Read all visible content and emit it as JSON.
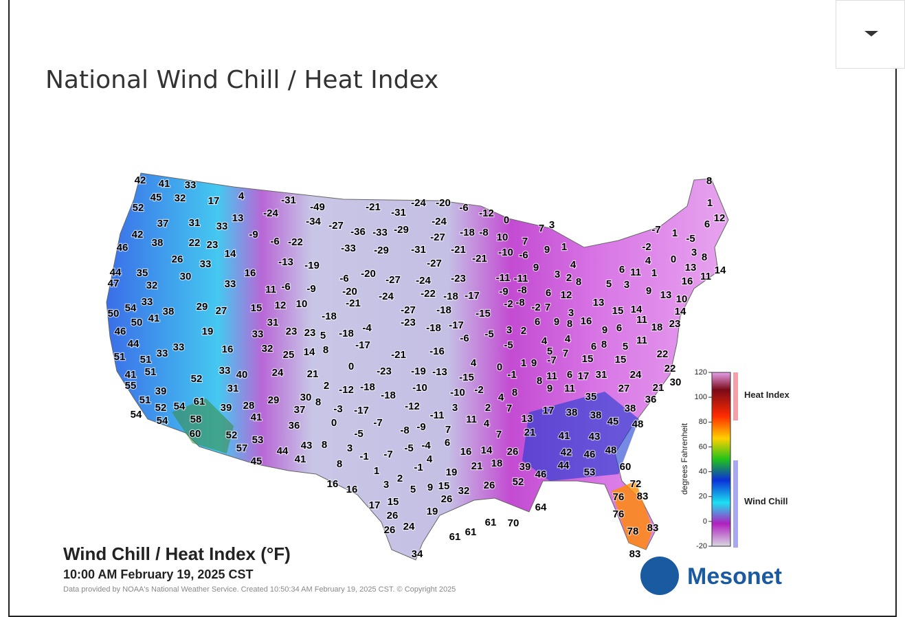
{
  "header": {
    "title": "National Wind Chill / Heat Index"
  },
  "map": {
    "title": "Wind Chill / Heat Index (°F)",
    "time": "10:00 AM February 19, 2025 CST",
    "credit": "Data provided by NOAA's National Weather Service. Created 10:50:34 AM February 19, 2025 CST. © Copyright 2025",
    "logo": "Mesonet",
    "legend": {
      "axis_label": "degrees Fahrenheit",
      "ticks": [
        120,
        100,
        80,
        60,
        40,
        20,
        0,
        -20
      ],
      "ylim": [
        -20,
        120
      ],
      "heat_label": "Heat Index",
      "chill_label": "Wind Chill"
    },
    "stations": [
      42,
      41,
      33,
      45,
      32,
      17,
      4,
      -31,
      -49,
      -21,
      -31,
      -24,
      -20,
      -6,
      -12,
      52,
      13,
      -24,
      -34,
      -27,
      -36,
      -33,
      -29,
      -24,
      -18,
      -8,
      0,
      7,
      3,
      37,
      31,
      33,
      -9,
      42,
      38,
      22,
      23,
      -6,
      -22,
      -33,
      -29,
      -31,
      -27,
      -21,
      10,
      7,
      9,
      1,
      46,
      26,
      14,
      -13,
      -19,
      -27,
      -21,
      -10,
      -6,
      33,
      4,
      9,
      44,
      35,
      30,
      16,
      -6,
      -20,
      -27,
      -24,
      -23,
      -11,
      -11,
      3,
      2,
      8,
      47,
      32,
      33,
      11,
      -6,
      -9,
      -20,
      -24,
      -22,
      -18,
      -17,
      -9,
      -8,
      6,
      12,
      33,
      29,
      27,
      15,
      12,
      10,
      -21,
      -27,
      -18,
      -15,
      -2,
      -8,
      -2,
      7,
      50,
      54,
      38,
      50,
      41,
      -18,
      -23,
      -18,
      -17,
      6,
      9,
      8,
      16,
      3,
      13,
      15,
      14,
      46,
      19,
      31,
      23,
      23,
      5,
      -18,
      -4,
      -6,
      -5,
      3,
      2,
      9,
      6,
      11,
      18,
      23,
      33,
      44,
      33,
      33,
      16,
      32,
      25,
      14,
      8,
      -17,
      -21,
      -16,
      -5,
      4,
      4,
      6,
      8,
      5,
      11,
      51,
      51,
      0,
      4,
      0,
      7,
      5,
      15,
      15,
      22,
      22,
      41,
      51,
      33,
      40,
      24,
      21,
      -23,
      -19,
      -13,
      -15,
      -1,
      1,
      9,
      -7,
      11,
      6,
      17,
      31,
      24,
      21,
      30,
      55,
      52,
      39,
      31,
      2,
      -12,
      -18,
      -18,
      -10,
      -10,
      -2,
      8,
      9,
      11,
      27,
      51,
      52,
      54,
      61,
      39,
      28,
      29,
      30,
      8,
      37,
      -3,
      -17,
      -12,
      3,
      2,
      7,
      4,
      8,
      35,
      36,
      54,
      54,
      58,
      41,
      36,
      0,
      -7,
      -11,
      11,
      4,
      13,
      17,
      38,
      38,
      45,
      38,
      48,
      60,
      52,
      53,
      -8,
      -9,
      -5,
      7,
      7,
      21,
      41,
      43,
      57,
      44,
      43,
      8,
      3,
      -5,
      -4,
      6,
      16,
      14,
      26,
      42,
      46,
      48,
      45,
      41,
      8,
      -1,
      -7,
      -1,
      4,
      21,
      18,
      39,
      44,
      60,
      1,
      19,
      46,
      53,
      3,
      2,
      16,
      16,
      5,
      9,
      15,
      32,
      26,
      52,
      72,
      26,
      17,
      15,
      76,
      83,
      64,
      26,
      19,
      76,
      61,
      61,
      70,
      61,
      26,
      24,
      78,
      83,
      34,
      83,
      8,
      1,
      12,
      6,
      -7,
      1,
      -5,
      -2,
      3,
      8,
      4,
      0,
      13,
      14,
      6,
      11,
      1,
      16,
      11,
      5,
      3,
      9,
      13,
      10,
      14
    ]
  }
}
